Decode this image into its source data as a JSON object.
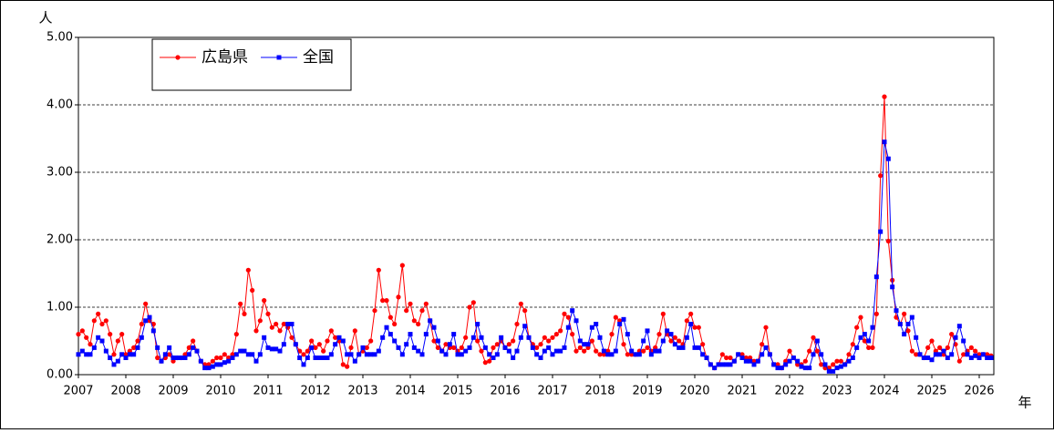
{
  "chart_data": {
    "type": "line",
    "ylabel": "人",
    "xlabel": "年",
    "ylim": [
      0,
      5
    ],
    "yticks": [
      {
        "value": 0,
        "label": "0.00"
      },
      {
        "value": 1,
        "label": "1.00"
      },
      {
        "value": 2,
        "label": "2.00"
      },
      {
        "value": 3,
        "label": "3.00"
      },
      {
        "value": 4,
        "label": "4.00"
      },
      {
        "value": 5,
        "label": "5.00"
      }
    ],
    "grid": true,
    "legend": "top-left",
    "categories": [
      "2007",
      null,
      null,
      null,
      null,
      null,
      null,
      null,
      null,
      null,
      null,
      null,
      "2008",
      null,
      null,
      null,
      null,
      null,
      null,
      null,
      null,
      null,
      null,
      null,
      "2009",
      null,
      null,
      null,
      null,
      null,
      null,
      null,
      null,
      null,
      null,
      null,
      "2010",
      null,
      null,
      null,
      null,
      null,
      null,
      null,
      null,
      null,
      null,
      null,
      "2011",
      null,
      null,
      null,
      null,
      null,
      null,
      null,
      null,
      null,
      null,
      null,
      "2012",
      null,
      null,
      null,
      null,
      null,
      null,
      null,
      null,
      null,
      null,
      null,
      "2013",
      null,
      null,
      null,
      null,
      null,
      null,
      null,
      null,
      null,
      null,
      null,
      "2014",
      null,
      null,
      null,
      null,
      null,
      null,
      null,
      null,
      null,
      null,
      null,
      "2015",
      null,
      null,
      null,
      null,
      null,
      null,
      null,
      null,
      null,
      null,
      null,
      "2016",
      null,
      null,
      null,
      null,
      null,
      null,
      null,
      null,
      null,
      null,
      null,
      "2017",
      null,
      null,
      null,
      null,
      null,
      null,
      null,
      null,
      null,
      null,
      null,
      "2018",
      null,
      null,
      null,
      null,
      null,
      null,
      null,
      null,
      null,
      null,
      null,
      "2019",
      null,
      null,
      null,
      null,
      null,
      null,
      null,
      null,
      null,
      null,
      null,
      "2020",
      null,
      null,
      null,
      null,
      null,
      null,
      null,
      null,
      null,
      null,
      null,
      "2021",
      null,
      null,
      null,
      null,
      null,
      null,
      null,
      null,
      null,
      null,
      null,
      "2022",
      null,
      null,
      null,
      null,
      null,
      null,
      null,
      null,
      null,
      null,
      null,
      "2023",
      null,
      null,
      null,
      null,
      null,
      null,
      null,
      null,
      null,
      null,
      null,
      "2024",
      null,
      null,
      null,
      null,
      null,
      null,
      null,
      null,
      null,
      null,
      null,
      "2025",
      null,
      null,
      null,
      null,
      null,
      null,
      null,
      null,
      null,
      null,
      null,
      "2026",
      null,
      null,
      null
    ],
    "series": [
      {
        "name": "広島県",
        "color": "#ff0000",
        "marker": "circle",
        "values": [
          0.6,
          0.65,
          0.55,
          0.45,
          0.8,
          0.9,
          0.75,
          0.8,
          0.6,
          0.3,
          0.5,
          0.6,
          0.3,
          0.35,
          0.4,
          0.5,
          0.75,
          1.05,
          0.8,
          0.75,
          0.25,
          0.2,
          0.25,
          0.3,
          0.2,
          0.25,
          0.25,
          0.3,
          0.4,
          0.5,
          0.35,
          0.2,
          0.15,
          0.15,
          0.2,
          0.25,
          0.25,
          0.3,
          0.25,
          0.3,
          0.6,
          1.05,
          0.9,
          1.55,
          1.25,
          0.65,
          0.8,
          1.1,
          0.9,
          0.7,
          0.75,
          0.65,
          0.75,
          0.7,
          0.55,
          0.45,
          0.35,
          0.3,
          0.35,
          0.5,
          0.4,
          0.45,
          0.35,
          0.5,
          0.65,
          0.55,
          0.5,
          0.15,
          0.12,
          0.4,
          0.65,
          0.3,
          0.35,
          0.4,
          0.5,
          0.95,
          1.55,
          1.1,
          1.1,
          0.85,
          0.75,
          1.15,
          1.62,
          0.95,
          1.05,
          0.8,
          0.75,
          0.95,
          1.05,
          0.8,
          0.5,
          0.4,
          0.35,
          0.45,
          0.4,
          0.4,
          0.35,
          0.4,
          0.55,
          1.0,
          1.07,
          0.5,
          0.35,
          0.18,
          0.2,
          0.4,
          0.45,
          0.5,
          0.4,
          0.45,
          0.5,
          0.75,
          1.05,
          0.95,
          0.55,
          0.45,
          0.4,
          0.45,
          0.55,
          0.5,
          0.55,
          0.6,
          0.65,
          0.9,
          0.85,
          0.6,
          0.35,
          0.4,
          0.35,
          0.4,
          0.5,
          0.35,
          0.3,
          0.3,
          0.35,
          0.6,
          0.85,
          0.8,
          0.45,
          0.3,
          0.3,
          0.3,
          0.35,
          0.35,
          0.4,
          0.35,
          0.4,
          0.6,
          0.9,
          0.6,
          0.5,
          0.55,
          0.5,
          0.45,
          0.8,
          0.9,
          0.7,
          0.7,
          0.45,
          0.25,
          0.15,
          0.1,
          0.15,
          0.3,
          0.25,
          0.25,
          0.2,
          0.3,
          0.3,
          0.25,
          0.25,
          0.2,
          0.2,
          0.45,
          0.7,
          0.3,
          0.15,
          0.15,
          0.1,
          0.2,
          0.35,
          0.25,
          0.15,
          0.15,
          0.2,
          0.35,
          0.55,
          0.35,
          0.15,
          0.1,
          0.1,
          0.15,
          0.2,
          0.2,
          0.15,
          0.3,
          0.45,
          0.7,
          0.85,
          0.5,
          0.4,
          0.4,
          0.9,
          2.95,
          4.12,
          1.98,
          1.4,
          0.85,
          0.75,
          0.9,
          0.65,
          0.35,
          0.3,
          0.3,
          0.25,
          0.4,
          0.5,
          0.35,
          0.4,
          0.3,
          0.4,
          0.6,
          0.45,
          0.2,
          0.3,
          0.35,
          0.4,
          0.35,
          0.3,
          0.3,
          0.3,
          0.28
        ]
      },
      {
        "name": "全国",
        "color": "#0000ff",
        "marker": "square",
        "values": [
          0.3,
          0.35,
          0.3,
          0.3,
          0.4,
          0.55,
          0.5,
          0.35,
          0.25,
          0.15,
          0.2,
          0.3,
          0.25,
          0.3,
          0.3,
          0.4,
          0.55,
          0.8,
          0.85,
          0.65,
          0.4,
          0.2,
          0.3,
          0.4,
          0.25,
          0.25,
          0.25,
          0.25,
          0.3,
          0.4,
          0.35,
          0.2,
          0.1,
          0.1,
          0.12,
          0.15,
          0.15,
          0.18,
          0.2,
          0.25,
          0.3,
          0.35,
          0.35,
          0.3,
          0.3,
          0.2,
          0.3,
          0.55,
          0.4,
          0.38,
          0.38,
          0.35,
          0.45,
          0.75,
          0.75,
          0.45,
          0.25,
          0.15,
          0.25,
          0.4,
          0.25,
          0.25,
          0.25,
          0.25,
          0.3,
          0.45,
          0.55,
          0.5,
          0.3,
          0.3,
          0.2,
          0.3,
          0.4,
          0.3,
          0.3,
          0.3,
          0.35,
          0.55,
          0.7,
          0.6,
          0.5,
          0.4,
          0.3,
          0.45,
          0.6,
          0.4,
          0.35,
          0.3,
          0.6,
          0.8,
          0.7,
          0.5,
          0.35,
          0.3,
          0.45,
          0.6,
          0.3,
          0.3,
          0.35,
          0.4,
          0.55,
          0.75,
          0.55,
          0.4,
          0.3,
          0.25,
          0.3,
          0.55,
          0.4,
          0.35,
          0.25,
          0.35,
          0.55,
          0.72,
          0.55,
          0.4,
          0.3,
          0.25,
          0.35,
          0.4,
          0.3,
          0.35,
          0.35,
          0.4,
          0.7,
          0.95,
          0.8,
          0.5,
          0.45,
          0.45,
          0.7,
          0.75,
          0.55,
          0.35,
          0.3,
          0.3,
          0.35,
          0.75,
          0.82,
          0.6,
          0.35,
          0.3,
          0.3,
          0.5,
          0.65,
          0.3,
          0.35,
          0.35,
          0.5,
          0.65,
          0.6,
          0.45,
          0.4,
          0.4,
          0.55,
          0.75,
          0.4,
          0.4,
          0.3,
          0.25,
          0.15,
          0.1,
          0.15,
          0.15,
          0.15,
          0.15,
          0.2,
          0.3,
          0.25,
          0.2,
          0.2,
          0.15,
          0.2,
          0.3,
          0.4,
          0.3,
          0.15,
          0.1,
          0.1,
          0.15,
          0.2,
          0.25,
          0.2,
          0.12,
          0.1,
          0.1,
          0.3,
          0.5,
          0.3,
          0.15,
          0.05,
          0.05,
          0.1,
          0.12,
          0.15,
          0.2,
          0.25,
          0.4,
          0.55,
          0.6,
          0.5,
          0.7,
          1.45,
          2.12,
          3.45,
          3.2,
          1.3,
          0.95,
          0.75,
          0.6,
          0.75,
          0.85,
          0.55,
          0.3,
          0.25,
          0.25,
          0.22,
          0.3,
          0.3,
          0.35,
          0.25,
          0.3,
          0.55,
          0.72,
          0.5,
          0.3,
          0.25,
          0.28,
          0.25,
          0.3,
          0.25,
          0.25
        ]
      }
    ]
  }
}
